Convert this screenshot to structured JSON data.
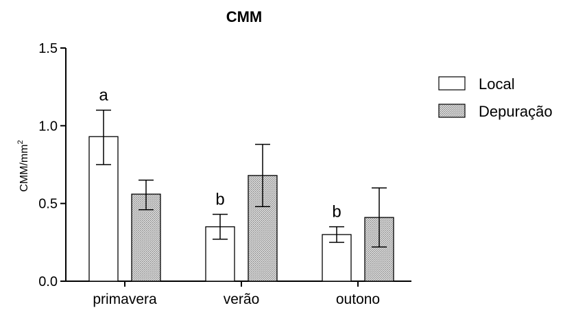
{
  "chart_data": {
    "type": "bar",
    "title": "CMM",
    "ylabel": "CMM/mm",
    "ylabel_sup": "2",
    "xlabel": "",
    "ylim": [
      0,
      1.5
    ],
    "yticks": [
      0.0,
      0.5,
      1.0,
      1.5
    ],
    "ytick_labels": [
      "0.0",
      "0.5",
      "1.0",
      "1.5"
    ],
    "categories": [
      "primavera",
      "verão",
      "outono"
    ],
    "series": [
      {
        "name": "Local",
        "values": [
          0.93,
          0.35,
          0.3
        ],
        "err_low": [
          0.75,
          0.27,
          0.25
        ],
        "err_high": [
          1.1,
          0.43,
          0.35
        ],
        "fill": "#ffffff"
      },
      {
        "name": "Depuração",
        "values": [
          0.56,
          0.68,
          0.41
        ],
        "err_low": [
          0.46,
          0.48,
          0.22
        ],
        "err_high": [
          0.65,
          0.88,
          0.6
        ],
        "fill": "#c8c8c8"
      }
    ],
    "annotations": [
      "a",
      "b",
      "b"
    ],
    "legend_position": "top-right",
    "grid": false,
    "colors": {
      "axis": "#000000",
      "local_fill": "#ffffff",
      "depuracao_fill": "#c8c8c8"
    }
  }
}
